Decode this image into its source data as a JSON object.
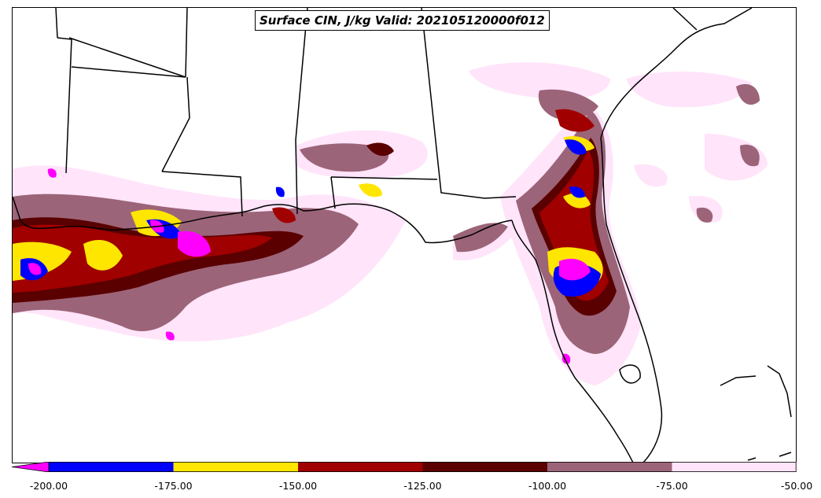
{
  "title": "Surface CIN, J/kg Valid: 202105120000f012",
  "colorbar": {
    "ticks": [
      "-200.00",
      "-175.00",
      "-150.00",
      "-125.00",
      "-100.00",
      "-75.00",
      "-50.00"
    ],
    "bins": [
      {
        "from": -225,
        "to": -200,
        "color": "#ff00ff"
      },
      {
        "from": -200,
        "to": -175,
        "color": "#0000ff"
      },
      {
        "from": -175,
        "to": -150,
        "color": "#ffe600"
      },
      {
        "from": -150,
        "to": -125,
        "color": "#a00000"
      },
      {
        "from": -125,
        "to": -100,
        "color": "#5a0000"
      },
      {
        "from": -100,
        "to": -75,
        "color": "#9c6478"
      },
      {
        "from": -75,
        "to": -50,
        "color": "#ffe4fa"
      }
    ],
    "extend": "min"
  }
}
